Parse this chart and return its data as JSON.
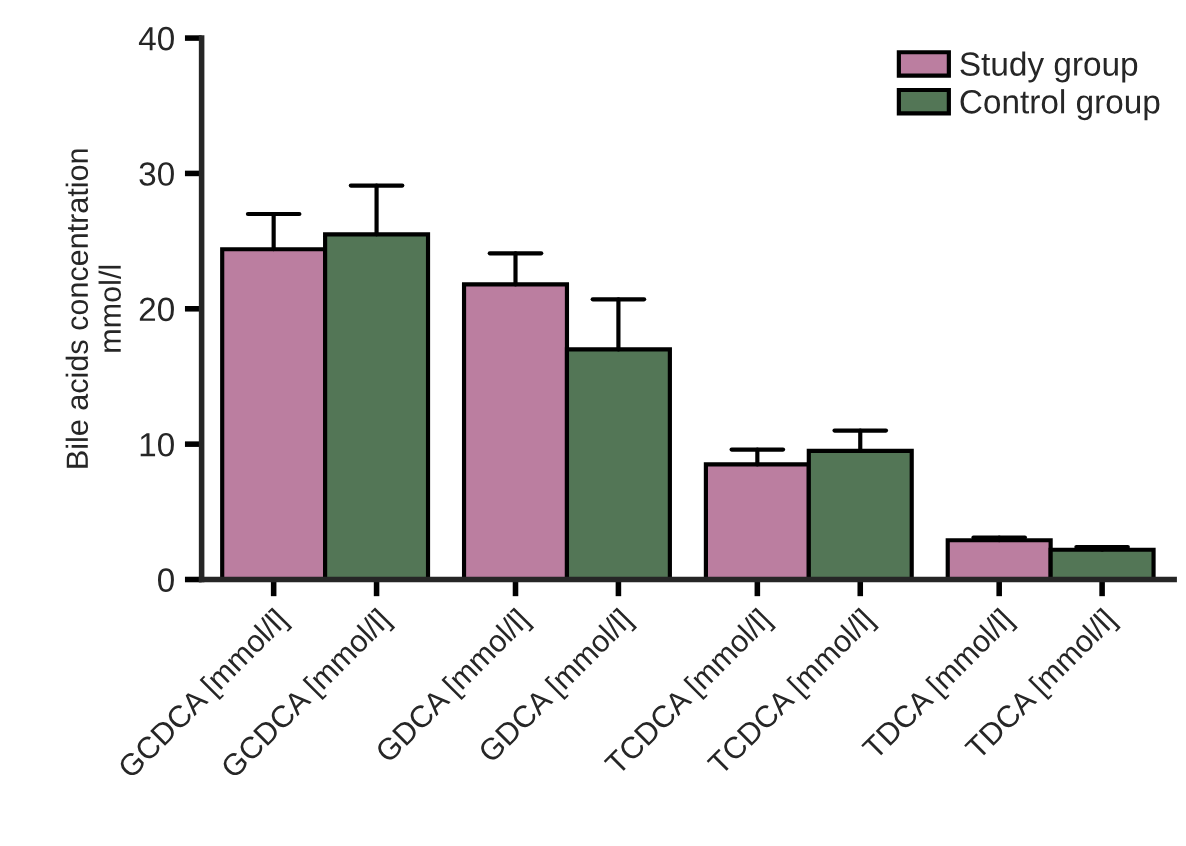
{
  "chart_data": {
    "type": "bar",
    "ylabel": "Bile acids concentration\nmmol/l",
    "categories": [
      "GCDCA [mmol/l]",
      "GCDCA [mmol/l]",
      "GDCA [mmol/l]",
      "GDCA [mmol/l]",
      "TCDCA [mmol/l]",
      "TCDCA [mmol/l]",
      "TDCA [mmol/l]",
      "TDCA [mmol/l]"
    ],
    "series": [
      {
        "name": "Study group",
        "color": "#bb7ea0",
        "values": [
          24.4,
          null,
          21.8,
          null,
          8.5,
          null,
          2.9,
          null
        ],
        "errors": [
          [
            24.4,
            27.0
          ],
          null,
          [
            21.8,
            24.1
          ],
          null,
          [
            8.5,
            9.6
          ],
          null,
          [
            2.9,
            3.1
          ],
          null
        ]
      },
      {
        "name": "Control group",
        "color": "#537656",
        "values": [
          null,
          25.5,
          null,
          17.0,
          null,
          9.5,
          null,
          2.2
        ],
        "errors": [
          null,
          [
            25.5,
            29.1
          ],
          null,
          [
            17.0,
            20.7
          ],
          null,
          [
            9.5,
            11.0
          ],
          null,
          [
            2.2,
            2.4
          ]
        ]
      }
    ],
    "ylim": [
      0,
      40
    ],
    "yticks": [
      0,
      10,
      20,
      30,
      40
    ],
    "grid": false,
    "legend": "top right"
  }
}
